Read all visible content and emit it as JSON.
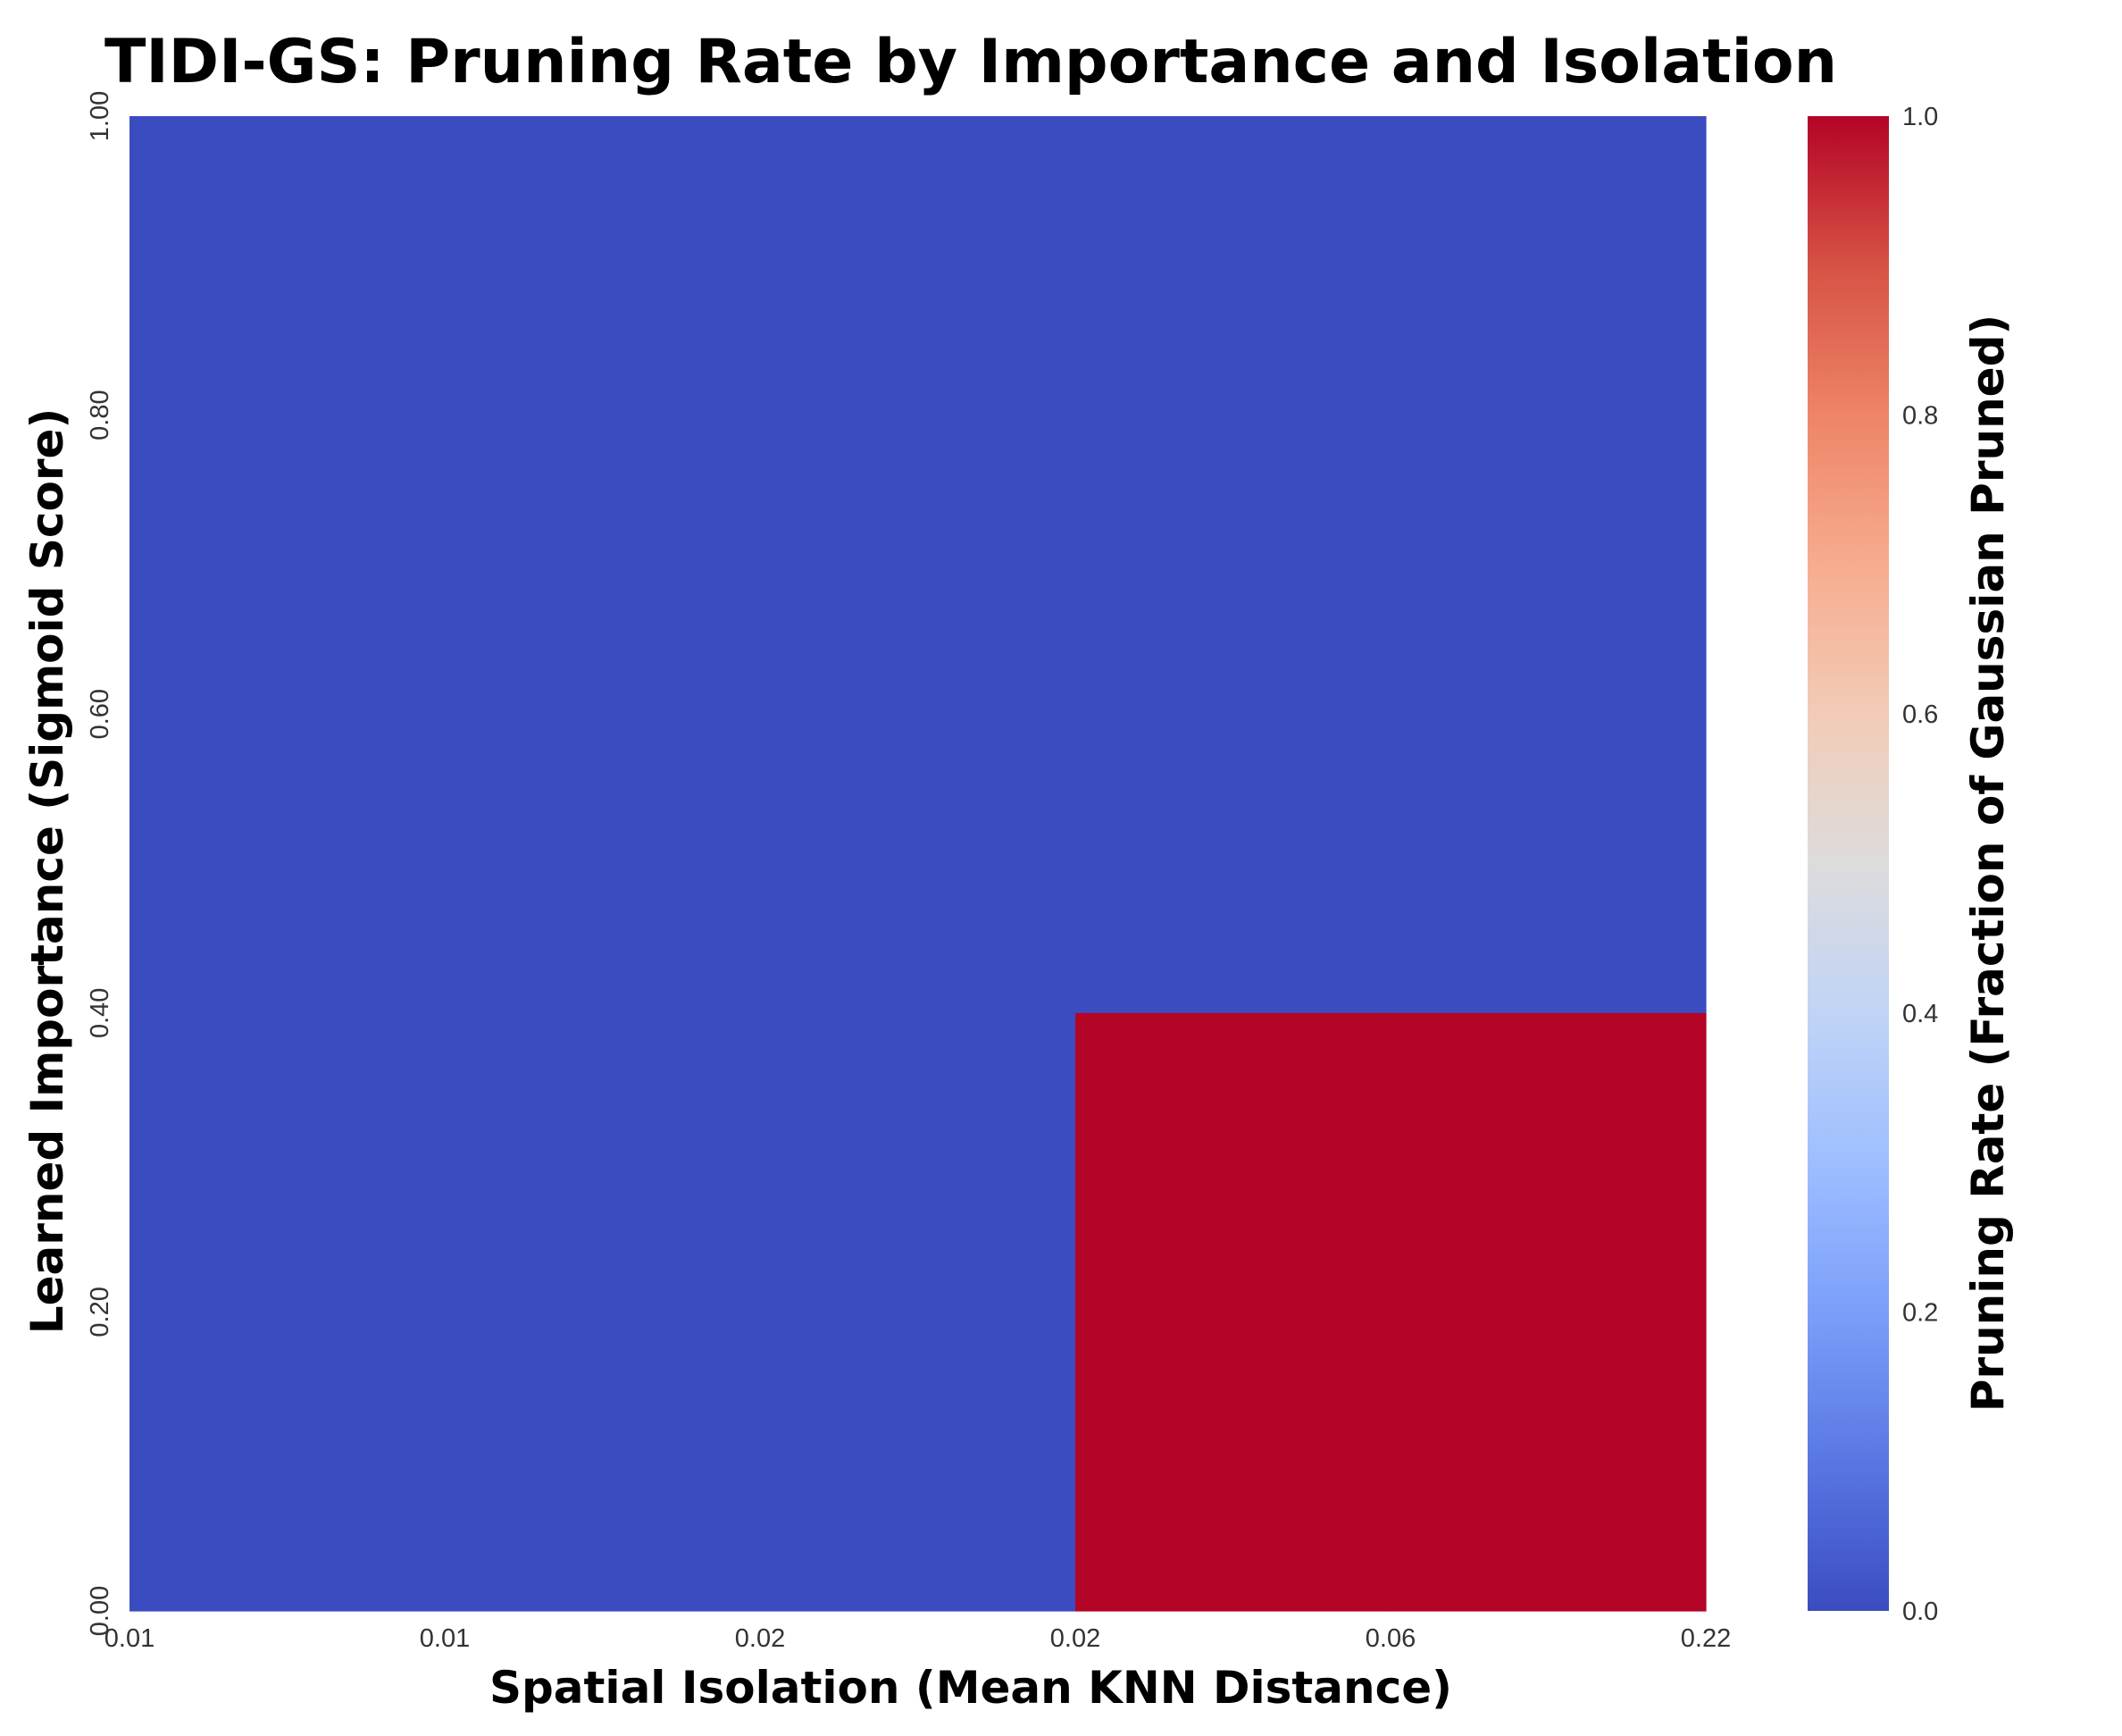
{
  "chart_data": {
    "type": "heatmap",
    "title": "TIDI-GS: Pruning Rate by Importance and Isolation",
    "xlabel": "Spatial Isolation (Mean KNN Distance)",
    "ylabel": "Learned Importance (Sigmoid Score)",
    "x_tick_labels": [
      "0.01",
      "0.01",
      "0.02",
      "0.02",
      "0.06",
      "0.22"
    ],
    "y_tick_labels": [
      "0.00",
      "0.20",
      "0.40",
      "0.60",
      "0.80",
      "1.00"
    ],
    "x_bins": [
      "0.01-0.01",
      "0.01-0.02",
      "0.02-0.02",
      "0.02-0.06",
      "0.06-0.22"
    ],
    "y_bins": [
      "0.40-1.00",
      "0.00-0.40"
    ],
    "values": [
      [
        0,
        0,
        0,
        0,
        0
      ],
      [
        0,
        0,
        0,
        1,
        1
      ]
    ],
    "colorbar": {
      "label": "Pruning Rate (Fraction of Gaussian Pruned)",
      "range": [
        0.0,
        1.0
      ],
      "tick_labels": [
        "0.0",
        "0.2",
        "0.4",
        "0.6",
        "0.8",
        "1.0"
      ],
      "colormap": "coolwarm",
      "low_color": "#3b4cc0",
      "high_color": "#b40426"
    },
    "grid": false
  }
}
